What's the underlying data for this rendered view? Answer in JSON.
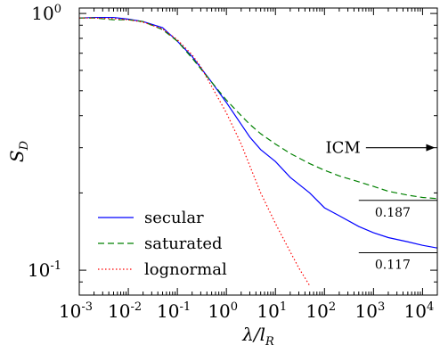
{
  "chart_data": {
    "type": "line",
    "xlabel": "λ/l_R",
    "ylabel": "S_D",
    "x_scale": "log",
    "y_scale": "log",
    "xlim": [
      0.001,
      20000
    ],
    "ylim": [
      0.08,
      1.05
    ],
    "x_ticks": [
      {
        "value": 0.001,
        "base": "10",
        "exp": "-3"
      },
      {
        "value": 0.01,
        "base": "10",
        "exp": "-2"
      },
      {
        "value": 0.1,
        "base": "10",
        "exp": "-1"
      },
      {
        "value": 1,
        "base": "10",
        "exp": "0"
      },
      {
        "value": 10,
        "base": "10",
        "exp": "1"
      },
      {
        "value": 100,
        "base": "10",
        "exp": "2"
      },
      {
        "value": 1000,
        "base": "10",
        "exp": "3"
      },
      {
        "value": 10000,
        "base": "10",
        "exp": "4"
      }
    ],
    "y_ticks": [
      {
        "value": 1,
        "base": "10",
        "exp": "0"
      },
      {
        "value": 0.1,
        "base": "10",
        "exp": "-1"
      }
    ],
    "grid": false,
    "legend_position": "bottom-left",
    "series": [
      {
        "name": "secular",
        "color": "#0000ff",
        "dash": "solid",
        "x": [
          0.001,
          0.002,
          0.005,
          0.01,
          0.02,
          0.05,
          0.1,
          0.2,
          0.5,
          1,
          2,
          3,
          5,
          10,
          20,
          50,
          100,
          200,
          500,
          1000,
          2000,
          5000,
          10000,
          20000
        ],
        "y": [
          0.96,
          0.965,
          0.965,
          0.95,
          0.93,
          0.88,
          0.78,
          0.68,
          0.54,
          0.45,
          0.37,
          0.33,
          0.295,
          0.265,
          0.23,
          0.2,
          0.175,
          0.163,
          0.148,
          0.14,
          0.134,
          0.129,
          0.125,
          0.122
        ]
      },
      {
        "name": "saturated",
        "color": "#008000",
        "dash": "dashed",
        "x": [
          0.001,
          0.002,
          0.005,
          0.01,
          0.02,
          0.05,
          0.1,
          0.2,
          0.5,
          1,
          2,
          3,
          5,
          10,
          20,
          50,
          100,
          200,
          500,
          1000,
          2000,
          5000,
          10000,
          20000
        ],
        "y": [
          0.96,
          0.96,
          0.945,
          0.945,
          0.93,
          0.865,
          0.78,
          0.67,
          0.54,
          0.46,
          0.4,
          0.37,
          0.34,
          0.31,
          0.285,
          0.26,
          0.245,
          0.233,
          0.221,
          0.212,
          0.203,
          0.196,
          0.192,
          0.19
        ]
      },
      {
        "name": "lognormal",
        "color": "#ff0000",
        "dash": "dotted",
        "x": [
          0.001,
          0.002,
          0.005,
          0.01,
          0.02,
          0.05,
          0.1,
          0.2,
          0.3,
          0.5,
          1,
          2,
          3,
          5,
          10,
          20,
          30,
          50
        ],
        "y": [
          0.96,
          0.96,
          0.955,
          0.945,
          0.925,
          0.87,
          0.79,
          0.69,
          0.62,
          0.52,
          0.41,
          0.31,
          0.255,
          0.2,
          0.152,
          0.118,
          0.102,
          0.087
        ]
      }
    ],
    "annotations": [
      {
        "type": "arrow",
        "text": "ICM",
        "x_from": 700,
        "x_to": 18000,
        "y": 0.3
      },
      {
        "type": "reference-line",
        "value": 0.187,
        "label": "0.187",
        "x_from": 500,
        "x_to": 20000
      },
      {
        "type": "reference-line",
        "value": 0.117,
        "label": "0.117",
        "x_from": 500,
        "x_to": 20000
      }
    ]
  }
}
